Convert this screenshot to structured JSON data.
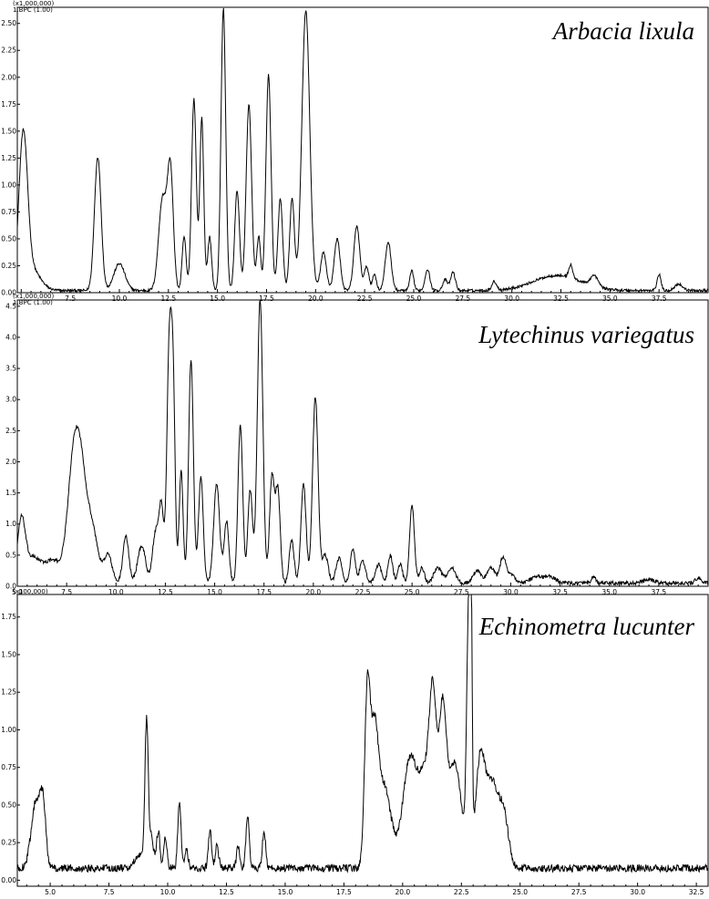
{
  "chart_data": [
    {
      "type": "line",
      "title": "Arbacia lixula",
      "scale_label": "(x1,000,000)",
      "trace_label": "1.BPC (1.00)",
      "xlim": [
        4.8,
        40.0
      ],
      "ylim": [
        0,
        2.65
      ],
      "x_ticks": [
        "7.5",
        "10.0",
        "12.5",
        "15.0",
        "17.5",
        "20.0",
        "22.5",
        "25.0",
        "27.5",
        "30.0",
        "32.5",
        "35.0",
        "37.5"
      ],
      "x_tick_values": [
        7.5,
        10.0,
        12.5,
        15.0,
        17.5,
        20.0,
        22.5,
        25.0,
        27.5,
        30.0,
        32.5,
        35.0,
        37.5
      ],
      "y_ticks": [
        "0.00",
        "0.25",
        "0.50",
        "0.75",
        "1.00",
        "1.25",
        "1.50",
        "1.75",
        "2.00",
        "2.25",
        "2.50"
      ],
      "y_tick_values": [
        0.0,
        0.25,
        0.5,
        0.75,
        1.0,
        1.25,
        1.5,
        1.75,
        2.0,
        2.25,
        2.5
      ],
      "baseline": 0.02,
      "noise": 0.012,
      "series": [
        {
          "peaks": [
            [
              5.1,
              1.36,
              0.22
            ],
            [
              5.5,
              0.2,
              0.45
            ],
            [
              8.9,
              1.24,
              0.17
            ],
            [
              10.0,
              0.25,
              0.28
            ],
            [
              12.2,
              0.85,
              0.2
            ],
            [
              12.6,
              1.1,
              0.15
            ],
            [
              13.3,
              0.5,
              0.1
            ],
            [
              13.8,
              1.78,
              0.12
            ],
            [
              14.2,
              1.6,
              0.1
            ],
            [
              14.6,
              0.5,
              0.1
            ],
            [
              15.3,
              2.62,
              0.12
            ],
            [
              16.0,
              0.93,
              0.12
            ],
            [
              16.6,
              1.72,
              0.14
            ],
            [
              17.1,
              0.5,
              0.1
            ],
            [
              17.6,
              2.0,
              0.13
            ],
            [
              18.2,
              0.85,
              0.12
            ],
            [
              18.8,
              0.85,
              0.12
            ],
            [
              19.5,
              2.6,
              0.2
            ],
            [
              20.4,
              0.35,
              0.15
            ],
            [
              21.1,
              0.48,
              0.15
            ],
            [
              22.1,
              0.6,
              0.15
            ],
            [
              22.6,
              0.22,
              0.12
            ],
            [
              23.0,
              0.15,
              0.1
            ],
            [
              23.7,
              0.45,
              0.15
            ],
            [
              24.9,
              0.18,
              0.1
            ],
            [
              25.7,
              0.2,
              0.12
            ],
            [
              26.6,
              0.1,
              0.12
            ],
            [
              27.0,
              0.17,
              0.12
            ],
            [
              29.1,
              0.08,
              0.12
            ],
            [
              32.3,
              0.14,
              1.2
            ],
            [
              33.0,
              0.12,
              0.1
            ],
            [
              34.2,
              0.1,
              0.2
            ],
            [
              37.5,
              0.15,
              0.1
            ],
            [
              38.5,
              0.06,
              0.2
            ]
          ]
        }
      ]
    },
    {
      "type": "line",
      "title": "Lytechinus variegatus",
      "scale_label": "(x1,000,000)",
      "trace_label": "1.BPC (1.00)",
      "xlim": [
        5.0,
        40.0
      ],
      "ylim": [
        0,
        4.6
      ],
      "x_ticks": [
        "5.0",
        "7.5",
        "10.0",
        "12.5",
        "15.0",
        "17.5",
        "20.0",
        "22.5",
        "25.0",
        "27.5",
        "30.0",
        "32.5",
        "35.0",
        "37.5"
      ],
      "x_tick_values": [
        5.0,
        7.5,
        10.0,
        12.5,
        15.0,
        17.5,
        20.0,
        22.5,
        25.0,
        27.5,
        30.0,
        32.5,
        35.0,
        37.5
      ],
      "y_ticks": [
        "0.0",
        "0.5",
        "1.0",
        "1.5",
        "2.0",
        "2.5",
        "3.0",
        "3.5",
        "4.0",
        "4.5"
      ],
      "y_tick_values": [
        0.0,
        0.5,
        1.0,
        1.5,
        2.0,
        2.5,
        3.0,
        3.5,
        4.0,
        4.5
      ],
      "baseline": 0.05,
      "noise": 0.03,
      "series": [
        {
          "peaks": [
            [
              5.2,
              0.95,
              0.2
            ],
            [
              5.8,
              0.4,
              0.4
            ],
            [
              6.8,
              0.35,
              0.4
            ],
            [
              7.8,
              1.5,
              0.3
            ],
            [
              8.2,
              1.6,
              0.3
            ],
            [
              8.8,
              0.8,
              0.3
            ],
            [
              9.6,
              0.45,
              0.2
            ],
            [
              10.5,
              0.75,
              0.15
            ],
            [
              11.3,
              0.6,
              0.2
            ],
            [
              12.0,
              0.8,
              0.15
            ],
            [
              12.3,
              1.2,
              0.12
            ],
            [
              12.7,
              3.8,
              0.12
            ],
            [
              12.9,
              2.8,
              0.1
            ],
            [
              13.3,
              1.8,
              0.1
            ],
            [
              13.8,
              3.6,
              0.12
            ],
            [
              14.3,
              1.7,
              0.12
            ],
            [
              15.1,
              1.6,
              0.15
            ],
            [
              15.6,
              1.0,
              0.12
            ],
            [
              16.3,
              2.55,
              0.12
            ],
            [
              16.8,
              1.5,
              0.12
            ],
            [
              17.3,
              4.55,
              0.14
            ],
            [
              17.9,
              1.7,
              0.12
            ],
            [
              18.2,
              1.5,
              0.12
            ],
            [
              18.9,
              0.7,
              0.12
            ],
            [
              19.5,
              1.6,
              0.13
            ],
            [
              20.1,
              3.0,
              0.14
            ],
            [
              20.6,
              0.45,
              0.15
            ],
            [
              21.3,
              0.4,
              0.15
            ],
            [
              22.0,
              0.55,
              0.12
            ],
            [
              22.5,
              0.35,
              0.15
            ],
            [
              23.3,
              0.3,
              0.15
            ],
            [
              23.9,
              0.45,
              0.12
            ],
            [
              24.4,
              0.3,
              0.12
            ],
            [
              25.0,
              1.25,
              0.12
            ],
            [
              25.5,
              0.25,
              0.12
            ],
            [
              26.3,
              0.25,
              0.2
            ],
            [
              27.0,
              0.25,
              0.2
            ],
            [
              28.3,
              0.2,
              0.2
            ],
            [
              29.0,
              0.25,
              0.2
            ],
            [
              29.6,
              0.4,
              0.15
            ],
            [
              30.0,
              0.15,
              0.2
            ],
            [
              31.3,
              0.1,
              0.3
            ],
            [
              32.0,
              0.1,
              0.3
            ],
            [
              34.2,
              0.1,
              0.1
            ],
            [
              37.0,
              0.05,
              0.3
            ],
            [
              39.5,
              0.08,
              0.15
            ]
          ]
        }
      ]
    },
    {
      "type": "line",
      "title": "Echinometra lucunter",
      "scale_label": "(x100,000)",
      "trace_label": "",
      "xlim": [
        3.6,
        33.0
      ],
      "ylim": [
        -0.04,
        1.9
      ],
      "x_ticks": [
        "5.0",
        "7.5",
        "10.0",
        "12.5",
        "15.0",
        "17.5",
        "20.0",
        "22.5",
        "25.0",
        "27.5",
        "30.0",
        "32.5"
      ],
      "x_tick_values": [
        5.0,
        7.5,
        10.0,
        12.5,
        15.0,
        17.5,
        20.0,
        22.5,
        25.0,
        27.5,
        30.0,
        32.5
      ],
      "y_ticks": [
        "0.00",
        "0.25",
        "0.50",
        "0.75",
        "1.00",
        "1.25",
        "1.50",
        "1.75"
      ],
      "y_tick_values": [
        0.0,
        0.25,
        0.5,
        0.75,
        1.0,
        1.25,
        1.5,
        1.75
      ],
      "baseline": 0.08,
      "noise": 0.025,
      "series": [
        {
          "peaks": [
            [
              4.4,
              0.45,
              0.2
            ],
            [
              4.7,
              0.35,
              0.12
            ],
            [
              8.8,
              0.08,
              0.2
            ],
            [
              9.1,
              0.95,
              0.07
            ],
            [
              9.3,
              0.2,
              0.1
            ],
            [
              9.6,
              0.25,
              0.07
            ],
            [
              9.9,
              0.2,
              0.07
            ],
            [
              10.5,
              0.45,
              0.07
            ],
            [
              10.8,
              0.12,
              0.07
            ],
            [
              11.8,
              0.25,
              0.07
            ],
            [
              12.1,
              0.15,
              0.07
            ],
            [
              13.0,
              0.15,
              0.07
            ],
            [
              13.4,
              0.35,
              0.07
            ],
            [
              14.1,
              0.25,
              0.07
            ],
            [
              18.5,
              1.15,
              0.12
            ],
            [
              18.8,
              0.75,
              0.15
            ],
            [
              19.2,
              0.55,
              0.3
            ],
            [
              20.3,
              0.7,
              0.3
            ],
            [
              21.0,
              0.6,
              0.3
            ],
            [
              21.3,
              0.85,
              0.15
            ],
            [
              21.7,
              0.9,
              0.15
            ],
            [
              22.2,
              0.7,
              0.3
            ],
            [
              22.8,
              1.5,
              0.08
            ],
            [
              22.9,
              1.75,
              0.05
            ],
            [
              23.3,
              0.7,
              0.2
            ],
            [
              23.8,
              0.55,
              0.25
            ],
            [
              24.3,
              0.35,
              0.2
            ]
          ]
        }
      ]
    }
  ]
}
